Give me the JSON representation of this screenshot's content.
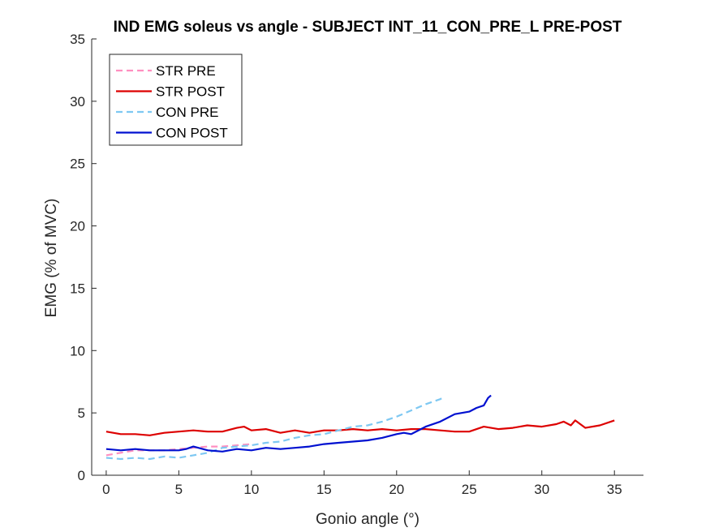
{
  "chart_data": {
    "type": "line",
    "title": "IND EMG soleus vs angle - SUBJECT INT_11_CON_PRE_L PRE-POST",
    "xlabel": "Gonio angle (°)",
    "ylabel": "EMG (% of MVC)",
    "xlim": [
      -1,
      37
    ],
    "ylim": [
      0,
      35
    ],
    "xticks": [
      0,
      5,
      10,
      15,
      20,
      25,
      30,
      35
    ],
    "yticks": [
      0,
      5,
      10,
      15,
      20,
      25,
      30,
      35
    ],
    "grid": false,
    "legend_position": "top-left",
    "series": [
      {
        "name": "STR PRE",
        "color": "#ff8fc0",
        "dash": true,
        "x": [
          0,
          0.5,
          1,
          1.5,
          2,
          3,
          4,
          5,
          6,
          7,
          8,
          9,
          10
        ],
        "y": [
          1.6,
          1.7,
          1.8,
          1.9,
          2.0,
          2.0,
          2.0,
          2.1,
          2.2,
          2.3,
          2.3,
          2.4,
          2.5
        ]
      },
      {
        "name": "STR POST",
        "color": "#dd0000",
        "dash": false,
        "x": [
          0,
          1,
          2,
          3,
          4,
          5,
          6,
          7,
          8,
          9,
          9.5,
          10,
          11,
          12,
          13,
          14,
          15,
          16,
          17,
          18,
          19,
          20,
          21,
          22,
          23,
          24,
          25,
          26,
          27,
          28,
          29,
          30,
          31,
          31.5,
          32,
          32.3,
          33,
          34,
          35
        ],
        "y": [
          3.5,
          3.3,
          3.3,
          3.2,
          3.4,
          3.5,
          3.6,
          3.5,
          3.5,
          3.8,
          3.9,
          3.6,
          3.7,
          3.4,
          3.6,
          3.4,
          3.6,
          3.6,
          3.7,
          3.6,
          3.7,
          3.6,
          3.7,
          3.7,
          3.6,
          3.5,
          3.5,
          3.9,
          3.7,
          3.8,
          4.0,
          3.9,
          4.1,
          4.3,
          4.0,
          4.4,
          3.8,
          4.0,
          4.4
        ]
      },
      {
        "name": "CON PRE",
        "color": "#7ec8f2",
        "dash": true,
        "x": [
          0,
          1,
          2,
          3,
          4,
          5,
          6,
          7,
          8,
          9,
          10,
          11,
          12,
          13,
          14,
          15,
          16,
          17,
          18,
          19,
          20,
          21,
          22,
          23,
          23.3
        ],
        "y": [
          1.4,
          1.3,
          1.4,
          1.3,
          1.5,
          1.4,
          1.6,
          1.8,
          2.2,
          2.3,
          2.4,
          2.6,
          2.7,
          3.0,
          3.2,
          3.3,
          3.6,
          3.9,
          4.0,
          4.3,
          4.7,
          5.2,
          5.7,
          6.1,
          6.3
        ]
      },
      {
        "name": "CON POST",
        "color": "#0010d0",
        "dash": false,
        "x": [
          0,
          1,
          2,
          3,
          4,
          5,
          5.5,
          6,
          7,
          8,
          9,
          10,
          11,
          12,
          13,
          14,
          15,
          16,
          17,
          18,
          19,
          20,
          20.5,
          21,
          22,
          23,
          24,
          25,
          25.5,
          26,
          26.3,
          26.5
        ],
        "y": [
          2.1,
          2.0,
          2.1,
          2.0,
          2.0,
          2.0,
          2.1,
          2.3,
          2.0,
          1.9,
          2.1,
          2.0,
          2.2,
          2.1,
          2.2,
          2.3,
          2.5,
          2.6,
          2.7,
          2.8,
          3.0,
          3.3,
          3.4,
          3.3,
          3.9,
          4.3,
          4.9,
          5.1,
          5.4,
          5.6,
          6.2,
          6.4
        ]
      }
    ]
  }
}
